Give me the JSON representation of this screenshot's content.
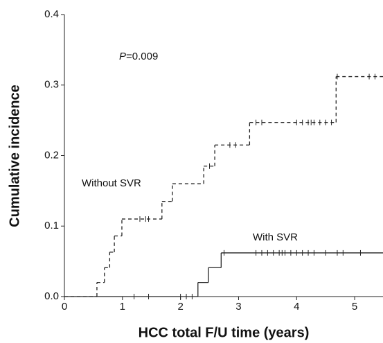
{
  "chart_data": {
    "type": "step",
    "x_label": "HCC total F/U time (years)",
    "y_label": "Cumulative incidence",
    "xlim": [
      0,
      5.5
    ],
    "ylim": [
      0,
      0.4
    ],
    "xticks": [
      0,
      1,
      2,
      3,
      4,
      5
    ],
    "yticks": [
      {
        "value": 0,
        "label": "0.0"
      },
      0.1,
      0.2,
      0.3,
      0.4
    ],
    "p_value": {
      "symbol": "P",
      "text": "=0.009"
    },
    "series": [
      {
        "name": "Without SVR",
        "color": "#222",
        "dash": "5,4",
        "x": [
          0,
          0.56,
          0.69,
          0.78,
          0.86,
          0.99,
          1.68,
          1.86,
          2.4,
          2.59,
          3.19,
          4.68
        ],
        "values": [
          0,
          0.02,
          0.041,
          0.063,
          0.086,
          0.11,
          0.135,
          0.16,
          0.185,
          0.215,
          0.247,
          0.312
        ],
        "censored": {
          "x": [
            1.3,
            1.4,
            1.45,
            2.5,
            2.85,
            2.95,
            3.3,
            3.4,
            4.0,
            4.1,
            4.2,
            4.25,
            4.3,
            4.4,
            4.5,
            4.6,
            4.7,
            5.25,
            5.35
          ],
          "values": [
            0.11,
            0.11,
            0.11,
            0.185,
            0.215,
            0.215,
            0.247,
            0.247,
            0.247,
            0.247,
            0.247,
            0.247,
            0.247,
            0.247,
            0.247,
            0.247,
            0.312,
            0.312,
            0.312
          ]
        }
      },
      {
        "name": "With SVR",
        "color": "#222",
        "dash": "",
        "x": [
          0,
          2.3,
          2.48,
          2.7
        ],
        "values": [
          0,
          0.02,
          0.041,
          0.062
        ],
        "censored": {
          "x": [
            1.2,
            1.45,
            2.0,
            2.1,
            2.2,
            2.75,
            3.3,
            3.4,
            3.5,
            3.6,
            3.7,
            3.75,
            3.8,
            3.9,
            4.0,
            4.1,
            4.2,
            4.3,
            4.5,
            4.7,
            4.8,
            5.1
          ],
          "values": [
            0,
            0,
            0,
            0,
            0,
            0.062,
            0.062,
            0.062,
            0.062,
            0.062,
            0.062,
            0.062,
            0.062,
            0.062,
            0.062,
            0.062,
            0.062,
            0.062,
            0.062,
            0.062,
            0.062,
            0.062
          ]
        }
      }
    ]
  }
}
